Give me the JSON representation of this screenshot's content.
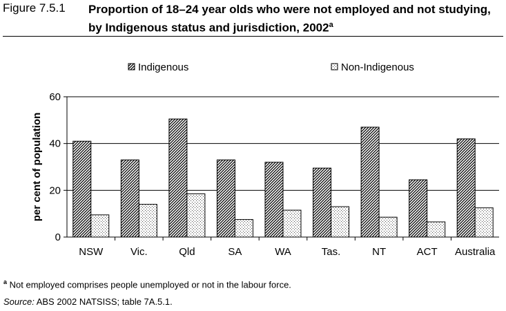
{
  "figure": {
    "number": "Figure 7.5.1",
    "title": "Proportion of 18–24 year olds who were not employed and not studying, by Indigenous status and jurisdiction, 2002",
    "title_marker": "a"
  },
  "footnote": {
    "marker": "a",
    "text": " Not employed comprises people unemployed or not in the labour force."
  },
  "source": {
    "label": "Source:",
    "text": " ABS 2002 NATSISS; table 7A.5.1."
  },
  "chart_data": {
    "type": "bar",
    "categories": [
      "NSW",
      "Vic.",
      "Qld",
      "SA",
      "WA",
      "Tas.",
      "NT",
      "ACT",
      "Australia"
    ],
    "series": [
      {
        "name": "Indigenous",
        "values": [
          41,
          33,
          50.5,
          33,
          32,
          29.5,
          47,
          24.5,
          42
        ],
        "pattern": "diagonal-hatch"
      },
      {
        "name": "Non-Indigenous",
        "values": [
          9.5,
          14,
          18.5,
          7.5,
          11.5,
          13,
          8.5,
          6.5,
          12.5
        ],
        "pattern": "dots"
      }
    ],
    "ylabel": "per cent of population",
    "xlabel": "",
    "ylim": [
      0,
      60
    ],
    "yticks": [
      0,
      20,
      40,
      60
    ],
    "grid": true,
    "legend": "top"
  }
}
